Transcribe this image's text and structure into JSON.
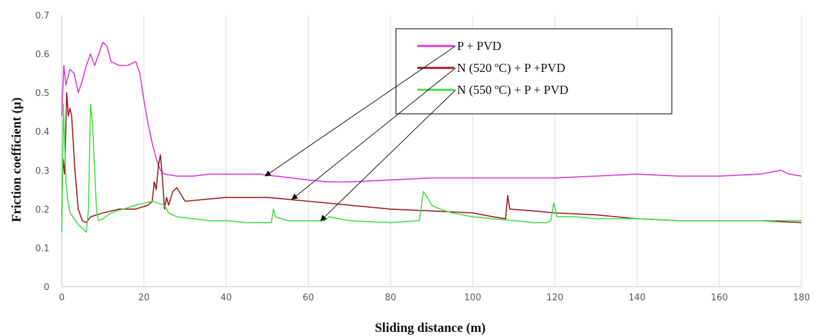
{
  "chart_data": {
    "type": "line",
    "title": "",
    "xlabel": "Sliding distance (m)",
    "ylabel": "Friction  coefficient (µ)",
    "xlim": [
      0,
      180
    ],
    "ylim": [
      0,
      0.7
    ],
    "xticks": [
      0,
      20,
      40,
      60,
      80,
      100,
      120,
      140,
      160,
      180
    ],
    "xtick_labels": [
      "0",
      "20",
      "40",
      "60",
      "80",
      "100",
      "120",
      "140",
      "160",
      "180"
    ],
    "yticks": [
      0,
      0.1,
      0.2,
      0.3,
      0.4,
      0.5,
      0.6,
      0.7
    ],
    "ytick_labels": [
      "0",
      "0.1",
      "0.2",
      "0.3",
      "0.4",
      "0.5",
      "0.6",
      "0.7"
    ],
    "grid": "vertical",
    "legend_position": "top-right",
    "series": [
      {
        "name": "P + PVD",
        "color": "#d63ad6",
        "points": [
          [
            0,
            0.44
          ],
          [
            0.5,
            0.57
          ],
          [
            1,
            0.52
          ],
          [
            2,
            0.56
          ],
          [
            3,
            0.55
          ],
          [
            4,
            0.5
          ],
          [
            5,
            0.53
          ],
          [
            6,
            0.57
          ],
          [
            7,
            0.6
          ],
          [
            8,
            0.57
          ],
          [
            9,
            0.6
          ],
          [
            10,
            0.63
          ],
          [
            11,
            0.62
          ],
          [
            12,
            0.58
          ],
          [
            14,
            0.57
          ],
          [
            16,
            0.57
          ],
          [
            18,
            0.58
          ],
          [
            19,
            0.55
          ],
          [
            20,
            0.48
          ],
          [
            21,
            0.42
          ],
          [
            22,
            0.37
          ],
          [
            23,
            0.33
          ],
          [
            24,
            0.3
          ],
          [
            25,
            0.29
          ],
          [
            28,
            0.285
          ],
          [
            32,
            0.285
          ],
          [
            36,
            0.29
          ],
          [
            40,
            0.29
          ],
          [
            44,
            0.29
          ],
          [
            48,
            0.29
          ],
          [
            52,
            0.285
          ],
          [
            56,
            0.28
          ],
          [
            60,
            0.275
          ],
          [
            65,
            0.27
          ],
          [
            70,
            0.27
          ],
          [
            80,
            0.275
          ],
          [
            90,
            0.28
          ],
          [
            100,
            0.28
          ],
          [
            110,
            0.28
          ],
          [
            120,
            0.28
          ],
          [
            130,
            0.285
          ],
          [
            140,
            0.29
          ],
          [
            150,
            0.285
          ],
          [
            160,
            0.285
          ],
          [
            170,
            0.29
          ],
          [
            175,
            0.3
          ],
          [
            177,
            0.29
          ],
          [
            180,
            0.285
          ]
        ]
      },
      {
        "name": "N (520 ºC) + P +PVD",
        "color": "#9b1a1a",
        "points": [
          [
            0,
            0.18
          ],
          [
            0.3,
            0.33
          ],
          [
            0.7,
            0.29
          ],
          [
            1.2,
            0.5
          ],
          [
            1.6,
            0.44
          ],
          [
            2,
            0.46
          ],
          [
            2.4,
            0.44
          ],
          [
            2.8,
            0.37
          ],
          [
            3.2,
            0.3
          ],
          [
            4,
            0.2
          ],
          [
            5,
            0.17
          ],
          [
            6,
            0.165
          ],
          [
            7,
            0.18
          ],
          [
            10,
            0.19
          ],
          [
            14,
            0.2
          ],
          [
            18,
            0.2
          ],
          [
            21,
            0.21
          ],
          [
            22,
            0.22
          ],
          [
            22.5,
            0.27
          ],
          [
            23,
            0.25
          ],
          [
            23.5,
            0.31
          ],
          [
            24,
            0.34
          ],
          [
            24.5,
            0.28
          ],
          [
            25,
            0.2
          ],
          [
            25.5,
            0.23
          ],
          [
            26,
            0.21
          ],
          [
            27,
            0.245
          ],
          [
            28,
            0.255
          ],
          [
            30,
            0.22
          ],
          [
            35,
            0.225
          ],
          [
            40,
            0.23
          ],
          [
            50,
            0.23
          ],
          [
            55,
            0.225
          ],
          [
            60,
            0.22
          ],
          [
            70,
            0.21
          ],
          [
            80,
            0.2
          ],
          [
            90,
            0.195
          ],
          [
            100,
            0.19
          ],
          [
            105,
            0.18
          ],
          [
            108,
            0.175
          ],
          [
            108.5,
            0.235
          ],
          [
            109,
            0.2
          ],
          [
            115,
            0.195
          ],
          [
            120,
            0.19
          ],
          [
            130,
            0.185
          ],
          [
            140,
            0.175
          ],
          [
            150,
            0.17
          ],
          [
            160,
            0.17
          ],
          [
            170,
            0.17
          ],
          [
            180,
            0.165
          ]
        ]
      },
      {
        "name": "N (550 ºC) + P + PVD",
        "color": "#44dd44",
        "points": [
          [
            0,
            0.14
          ],
          [
            0.4,
            0.47
          ],
          [
            1,
            0.27
          ],
          [
            1.5,
            0.22
          ],
          [
            2,
            0.19
          ],
          [
            3,
            0.175
          ],
          [
            4,
            0.16
          ],
          [
            5,
            0.15
          ],
          [
            6,
            0.14
          ],
          [
            6.5,
            0.2
          ],
          [
            7,
            0.47
          ],
          [
            7.5,
            0.42
          ],
          [
            8,
            0.3
          ],
          [
            8.5,
            0.19
          ],
          [
            9,
            0.17
          ],
          [
            10,
            0.175
          ],
          [
            12,
            0.19
          ],
          [
            15,
            0.2
          ],
          [
            18,
            0.21
          ],
          [
            20,
            0.215
          ],
          [
            22,
            0.22
          ],
          [
            25,
            0.21
          ],
          [
            26,
            0.19
          ],
          [
            28,
            0.18
          ],
          [
            32,
            0.175
          ],
          [
            36,
            0.17
          ],
          [
            40,
            0.17
          ],
          [
            45,
            0.165
          ],
          [
            51,
            0.165
          ],
          [
            51.5,
            0.2
          ],
          [
            52,
            0.18
          ],
          [
            55,
            0.17
          ],
          [
            60,
            0.17
          ],
          [
            64,
            0.17
          ],
          [
            65,
            0.18
          ],
          [
            70,
            0.17
          ],
          [
            80,
            0.165
          ],
          [
            87,
            0.17
          ],
          [
            88,
            0.245
          ],
          [
            89,
            0.23
          ],
          [
            90,
            0.21
          ],
          [
            92,
            0.2
          ],
          [
            95,
            0.19
          ],
          [
            100,
            0.18
          ],
          [
            110,
            0.17
          ],
          [
            115,
            0.165
          ],
          [
            118,
            0.165
          ],
          [
            119,
            0.17
          ],
          [
            119.7,
            0.215
          ],
          [
            120.5,
            0.18
          ],
          [
            125,
            0.18
          ],
          [
            130,
            0.175
          ],
          [
            140,
            0.175
          ],
          [
            150,
            0.17
          ],
          [
            160,
            0.17
          ],
          [
            170,
            0.17
          ],
          [
            180,
            0.17
          ]
        ]
      }
    ],
    "annotations": [
      {
        "from_series": "P + PVD",
        "to": [
          49.5,
          0.285
        ]
      },
      {
        "from_series": "N (520 ºC) + P +PVD",
        "to": [
          56,
          0.225
        ]
      },
      {
        "from_series": "N (550 ºC) + P + PVD",
        "to": [
          63,
          0.17
        ]
      }
    ]
  }
}
